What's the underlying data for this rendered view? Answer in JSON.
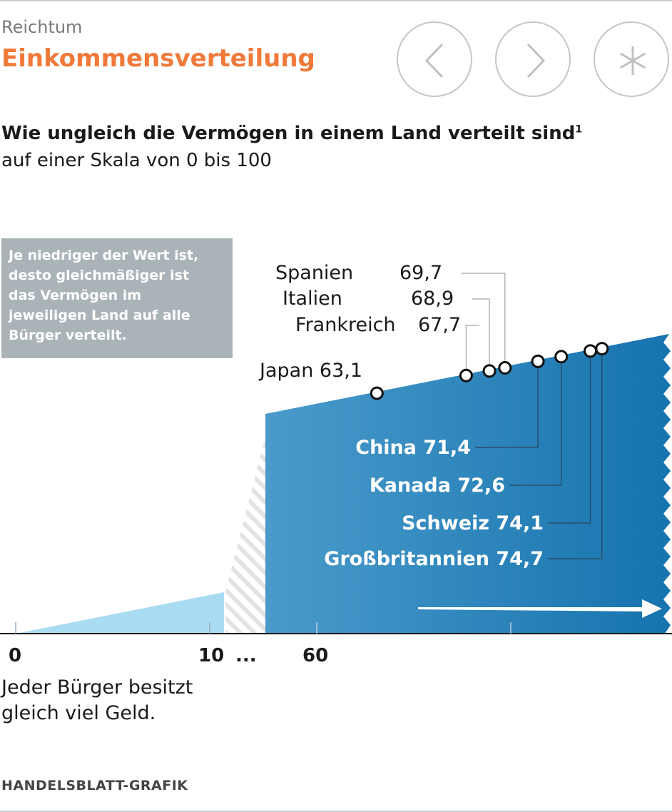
{
  "header": {
    "kicker": "Reichtum",
    "title": "Einkommensverteilung",
    "nav": [
      {
        "name": "prev",
        "icon": "chevron-left-icon"
      },
      {
        "name": "next",
        "icon": "chevron-right-icon"
      },
      {
        "name": "info",
        "icon": "asterisk-icon"
      }
    ]
  },
  "subtitle": "Wie ungleich die Vermögen in einem Land verteilt sind",
  "subtitle_footnote": "1",
  "subtitle2": "auf einer Skala von 0 bis 100",
  "note_lines": [
    "Je niedriger der Wert ist,",
    "desto gleichmäßiger ist",
    "das Vermögen im",
    "jeweiligen Land auf alle",
    "Bürger verteilt."
  ],
  "caption_lines": [
    "Jeder Bürger besitzt",
    "gleich viel Geld."
  ],
  "source": "HANDELSBLATT-GRAFIK",
  "colors": {
    "light_blue": "#a9dcf3",
    "dark_blue": "#1e78b2",
    "mid_blue": "#4a9bcb",
    "title_orange": "#f07a3a",
    "note_gray": "#aab3b8"
  },
  "chart_data": {
    "type": "area",
    "title": "Wie ungleich die Vermögen in einem Land verteilt sind",
    "scale": [
      0,
      100
    ],
    "axis_break": "...",
    "x_ticks": [
      "0",
      "10",
      "60"
    ],
    "points": [
      {
        "label": "Japan",
        "value": 63.1,
        "display": "63,1"
      },
      {
        "label": "Frankreich",
        "value": 67.7,
        "display": "67,7"
      },
      {
        "label": "Italien",
        "value": 68.9,
        "display": "68,9"
      },
      {
        "label": "Spanien",
        "value": 69.7,
        "display": "69,7"
      },
      {
        "label": "China",
        "value": 71.4,
        "display": "71,4"
      },
      {
        "label": "Kanada",
        "value": 72.6,
        "display": "72,6"
      },
      {
        "label": "Schweiz",
        "value": 74.1,
        "display": "74,1"
      },
      {
        "label": "Großbritannien",
        "value": 74.7,
        "display": "74,7"
      }
    ]
  }
}
